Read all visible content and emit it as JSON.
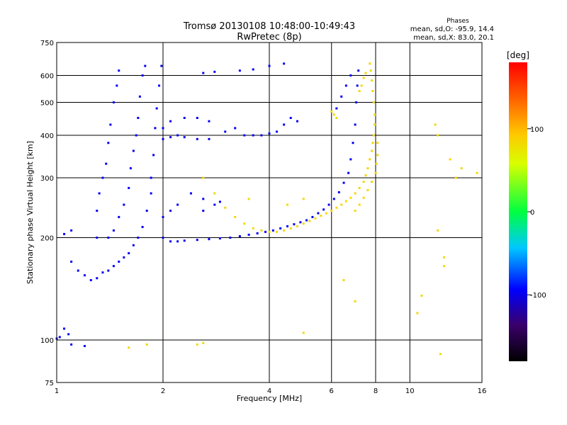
{
  "chart_data": {
    "type": "scatter",
    "title": "Tromsø 20130108 10:48:00-10:49:43",
    "subtitle": "RwPretec (8p)",
    "xlabel": "Frequency [MHz]",
    "ylabel": "Stationary phase Virtual Height [km]",
    "x_scale": "log",
    "y_scale": "log",
    "xlim": [
      1,
      16
    ],
    "ylim": [
      75,
      750
    ],
    "x_ticks": [
      1,
      2,
      4,
      6,
      8,
      10,
      16
    ],
    "x_tick_labels": [
      "1",
      "2",
      "4",
      "6",
      "8",
      "10",
      "16"
    ],
    "y_ticks": [
      75,
      100,
      200,
      300,
      400,
      500,
      600,
      750
    ],
    "y_tick_labels": [
      "75",
      "100",
      "200",
      "300",
      "400",
      "500",
      "600",
      "750"
    ],
    "grid": true,
    "phase_info": {
      "heading": "Phases",
      "line_o": "mean, sd,O: -95.9, 14.4",
      "line_x": "mean, sd,X: 83.0, 20.1"
    },
    "colorbar": {
      "label": "[deg]",
      "range": [
        -180,
        180
      ],
      "ticks": [
        100,
        0,
        -100
      ],
      "tick_labels": [
        "100",
        "0",
        "-100"
      ],
      "colormap": "rainbow"
    },
    "series": [
      {
        "name": "O",
        "phase_mean": -95.9,
        "points": [
          [
            1.0,
            101
          ],
          [
            1.02,
            102
          ],
          [
            1.05,
            108
          ],
          [
            1.08,
            104
          ],
          [
            1.1,
            97
          ],
          [
            1.2,
            96
          ],
          [
            1.05,
            205
          ],
          [
            1.1,
            210
          ],
          [
            1.1,
            170
          ],
          [
            1.15,
            160
          ],
          [
            1.2,
            155
          ],
          [
            1.25,
            150
          ],
          [
            1.3,
            152
          ],
          [
            1.35,
            158
          ],
          [
            1.4,
            160
          ],
          [
            1.45,
            165
          ],
          [
            1.5,
            170
          ],
          [
            1.55,
            175
          ],
          [
            1.4,
            200
          ],
          [
            1.45,
            210
          ],
          [
            1.5,
            230
          ],
          [
            1.55,
            250
          ],
          [
            1.6,
            280
          ],
          [
            1.62,
            320
          ],
          [
            1.65,
            360
          ],
          [
            1.68,
            400
          ],
          [
            1.7,
            450
          ],
          [
            1.72,
            520
          ],
          [
            1.75,
            600
          ],
          [
            1.78,
            640
          ],
          [
            1.6,
            180
          ],
          [
            1.65,
            190
          ],
          [
            1.7,
            200
          ],
          [
            1.75,
            215
          ],
          [
            1.8,
            240
          ],
          [
            1.85,
            270
          ],
          [
            1.85,
            300
          ],
          [
            1.88,
            350
          ],
          [
            1.9,
            420
          ],
          [
            1.92,
            480
          ],
          [
            1.95,
            560
          ],
          [
            1.98,
            640
          ],
          [
            1.3,
            200
          ],
          [
            1.3,
            240
          ],
          [
            1.32,
            270
          ],
          [
            1.35,
            300
          ],
          [
            1.38,
            330
          ],
          [
            1.4,
            380
          ],
          [
            1.42,
            430
          ],
          [
            1.45,
            500
          ],
          [
            1.48,
            560
          ],
          [
            1.5,
            620
          ],
          [
            2.0,
            230
          ],
          [
            2.1,
            240
          ],
          [
            2.2,
            250
          ],
          [
            2.0,
            200
          ],
          [
            2.1,
            195
          ],
          [
            2.2,
            195
          ],
          [
            2.0,
            390
          ],
          [
            2.1,
            395
          ],
          [
            2.2,
            400
          ],
          [
            2.3,
            395
          ],
          [
            2.5,
            390
          ],
          [
            2.7,
            390
          ],
          [
            2.0,
            420
          ],
          [
            2.1,
            440
          ],
          [
            2.3,
            450
          ],
          [
            2.5,
            450
          ],
          [
            2.7,
            440
          ],
          [
            2.3,
            196
          ],
          [
            2.5,
            197
          ],
          [
            2.7,
            198
          ],
          [
            2.9,
            199
          ],
          [
            3.1,
            200
          ],
          [
            3.3,
            202
          ],
          [
            3.5,
            204
          ],
          [
            3.7,
            206
          ],
          [
            3.9,
            208
          ],
          [
            4.1,
            210
          ],
          [
            4.3,
            213
          ],
          [
            4.5,
            216
          ],
          [
            4.7,
            219
          ],
          [
            4.9,
            222
          ],
          [
            5.1,
            225
          ],
          [
            5.3,
            230
          ],
          [
            5.5,
            236
          ],
          [
            5.7,
            242
          ],
          [
            5.9,
            250
          ],
          [
            6.1,
            260
          ],
          [
            6.3,
            272
          ],
          [
            6.5,
            290
          ],
          [
            6.7,
            310
          ],
          [
            6.8,
            340
          ],
          [
            6.9,
            380
          ],
          [
            7.0,
            430
          ],
          [
            7.05,
            500
          ],
          [
            7.1,
            560
          ],
          [
            7.15,
            620
          ],
          [
            6.2,
            480
          ],
          [
            6.4,
            520
          ],
          [
            6.6,
            560
          ],
          [
            6.8,
            600
          ],
          [
            3.0,
            410
          ],
          [
            3.2,
            420
          ],
          [
            3.4,
            400
          ],
          [
            3.6,
            400
          ],
          [
            3.8,
            400
          ],
          [
            4.0,
            405
          ],
          [
            4.2,
            410
          ],
          [
            4.4,
            430
          ],
          [
            4.6,
            450
          ],
          [
            4.8,
            440
          ],
          [
            3.3,
            620
          ],
          [
            3.6,
            625
          ],
          [
            4.0,
            640
          ],
          [
            4.4,
            650
          ],
          [
            2.6,
            610
          ],
          [
            2.8,
            615
          ],
          [
            2.4,
            270
          ],
          [
            2.6,
            260
          ],
          [
            2.8,
            250
          ],
          [
            2.9,
            255
          ],
          [
            2.6,
            240
          ]
        ]
      },
      {
        "name": "X",
        "phase_mean": 83.0,
        "points": [
          [
            2.6,
            300
          ],
          [
            2.8,
            270
          ],
          [
            3.0,
            245
          ],
          [
            3.2,
            230
          ],
          [
            3.4,
            220
          ],
          [
            3.6,
            213
          ],
          [
            3.8,
            210
          ],
          [
            4.0,
            208
          ],
          [
            4.2,
            208
          ],
          [
            4.4,
            210
          ],
          [
            4.6,
            213
          ],
          [
            4.8,
            216
          ],
          [
            5.0,
            220
          ],
          [
            5.2,
            224
          ],
          [
            5.4,
            228
          ],
          [
            5.6,
            232
          ],
          [
            5.8,
            236
          ],
          [
            6.0,
            240
          ],
          [
            6.2,
            245
          ],
          [
            6.4,
            250
          ],
          [
            6.6,
            256
          ],
          [
            6.8,
            262
          ],
          [
            7.0,
            270
          ],
          [
            7.2,
            280
          ],
          [
            7.4,
            292
          ],
          [
            7.5,
            305
          ],
          [
            7.6,
            320
          ],
          [
            7.7,
            340
          ],
          [
            7.8,
            360
          ],
          [
            7.85,
            380
          ],
          [
            7.9,
            400
          ],
          [
            7.95,
            430
          ],
          [
            7.95,
            460
          ],
          [
            7.9,
            500
          ],
          [
            7.85,
            540
          ],
          [
            7.8,
            580
          ],
          [
            7.75,
            620
          ],
          [
            7.7,
            650
          ],
          [
            7.0,
            240
          ],
          [
            7.2,
            250
          ],
          [
            7.4,
            262
          ],
          [
            7.6,
            276
          ],
          [
            7.8,
            292
          ],
          [
            8.0,
            310
          ],
          [
            8.05,
            330
          ],
          [
            8.1,
            350
          ],
          [
            8.1,
            380
          ],
          [
            7.2,
            540
          ],
          [
            7.3,
            560
          ],
          [
            7.4,
            590
          ],
          [
            7.5,
            610
          ],
          [
            6.0,
            470
          ],
          [
            6.1,
            460
          ],
          [
            6.2,
            450
          ],
          [
            2.5,
            97
          ],
          [
            2.6,
            98
          ],
          [
            1.8,
            97
          ],
          [
            1.6,
            95
          ],
          [
            12.5,
            175
          ],
          [
            12.5,
            165
          ],
          [
            11.8,
            430
          ],
          [
            12.0,
            400
          ],
          [
            10.5,
            120
          ],
          [
            10.8,
            135
          ],
          [
            12.0,
            210
          ],
          [
            13.5,
            300
          ],
          [
            14.0,
            320
          ],
          [
            5.0,
            105
          ],
          [
            6.5,
            150
          ],
          [
            7.0,
            130
          ],
          [
            4.5,
            250
          ],
          [
            5.0,
            260
          ],
          [
            3.5,
            260
          ],
          [
            12.2,
            91
          ],
          [
            13.0,
            340
          ],
          [
            15.5,
            310
          ]
        ]
      }
    ]
  }
}
